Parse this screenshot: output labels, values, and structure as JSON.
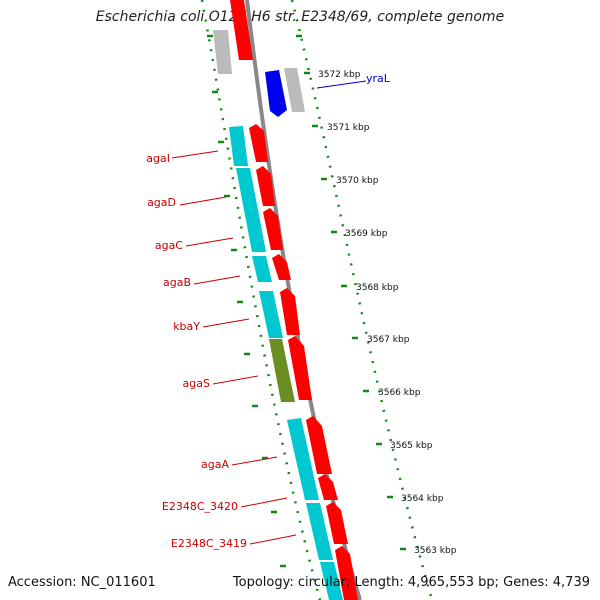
{
  "title": "Escherichia coli O127:H6 str. E2348/69, complete genome",
  "footer": {
    "accession": "Accession: NC_011601",
    "topology": "Topology: circular; Length: 4,965,553 bp; Genes: 4,739"
  },
  "map": {
    "ticks": [
      "3572 kbp",
      "3571 kbp",
      "3570 kbp",
      "3569 kbp",
      "3568 kbp",
      "3567 kbp",
      "3566 kbp",
      "3565 kbp",
      "3564 kbp",
      "3563 kbp"
    ],
    "gene_labels": [
      "agaI",
      "agaD",
      "agaC",
      "agaB",
      "kbaY",
      "agaS",
      "agaA",
      "E2348C_3420",
      "E2348C_3419"
    ],
    "top_gene_label": "yraL",
    "colors": {
      "tick": "#118811",
      "label": "#cc0000",
      "top_label": "#0000cc",
      "cyan": "#00c8d0",
      "red": "#ff0000",
      "blue": "#0000ee",
      "gray": "#bbbbbb",
      "olive": "#6b8e23",
      "backbone": "#888888"
    }
  }
}
